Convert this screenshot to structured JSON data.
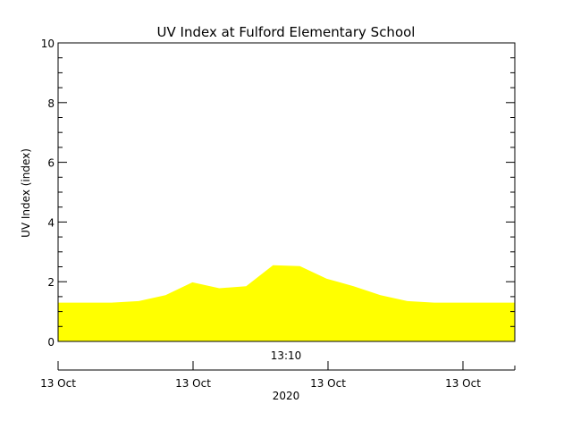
{
  "chart_data": {
    "type": "area",
    "title": "UV Index at Fulford Elementary School",
    "ylabel": "UV Index (index)",
    "xlabel": "2020",
    "x_center_label": "13:10",
    "ylim": [
      0,
      10
    ],
    "y_ticks": [
      0,
      2,
      4,
      6,
      8,
      10
    ],
    "y_minor_step": 0.5,
    "x_tick_labels": [
      "13 Oct",
      "13 Oct",
      "13 Oct",
      "13 Oct"
    ],
    "grid": false,
    "fill_color": "#ffff00",
    "series": [
      {
        "values": [
          1.3,
          1.3,
          1.3,
          1.35,
          1.55,
          1.98,
          1.78,
          1.85,
          2.55,
          2.52,
          2.1,
          1.85,
          1.55,
          1.35,
          1.3,
          1.3,
          1.3,
          1.3
        ]
      }
    ]
  }
}
